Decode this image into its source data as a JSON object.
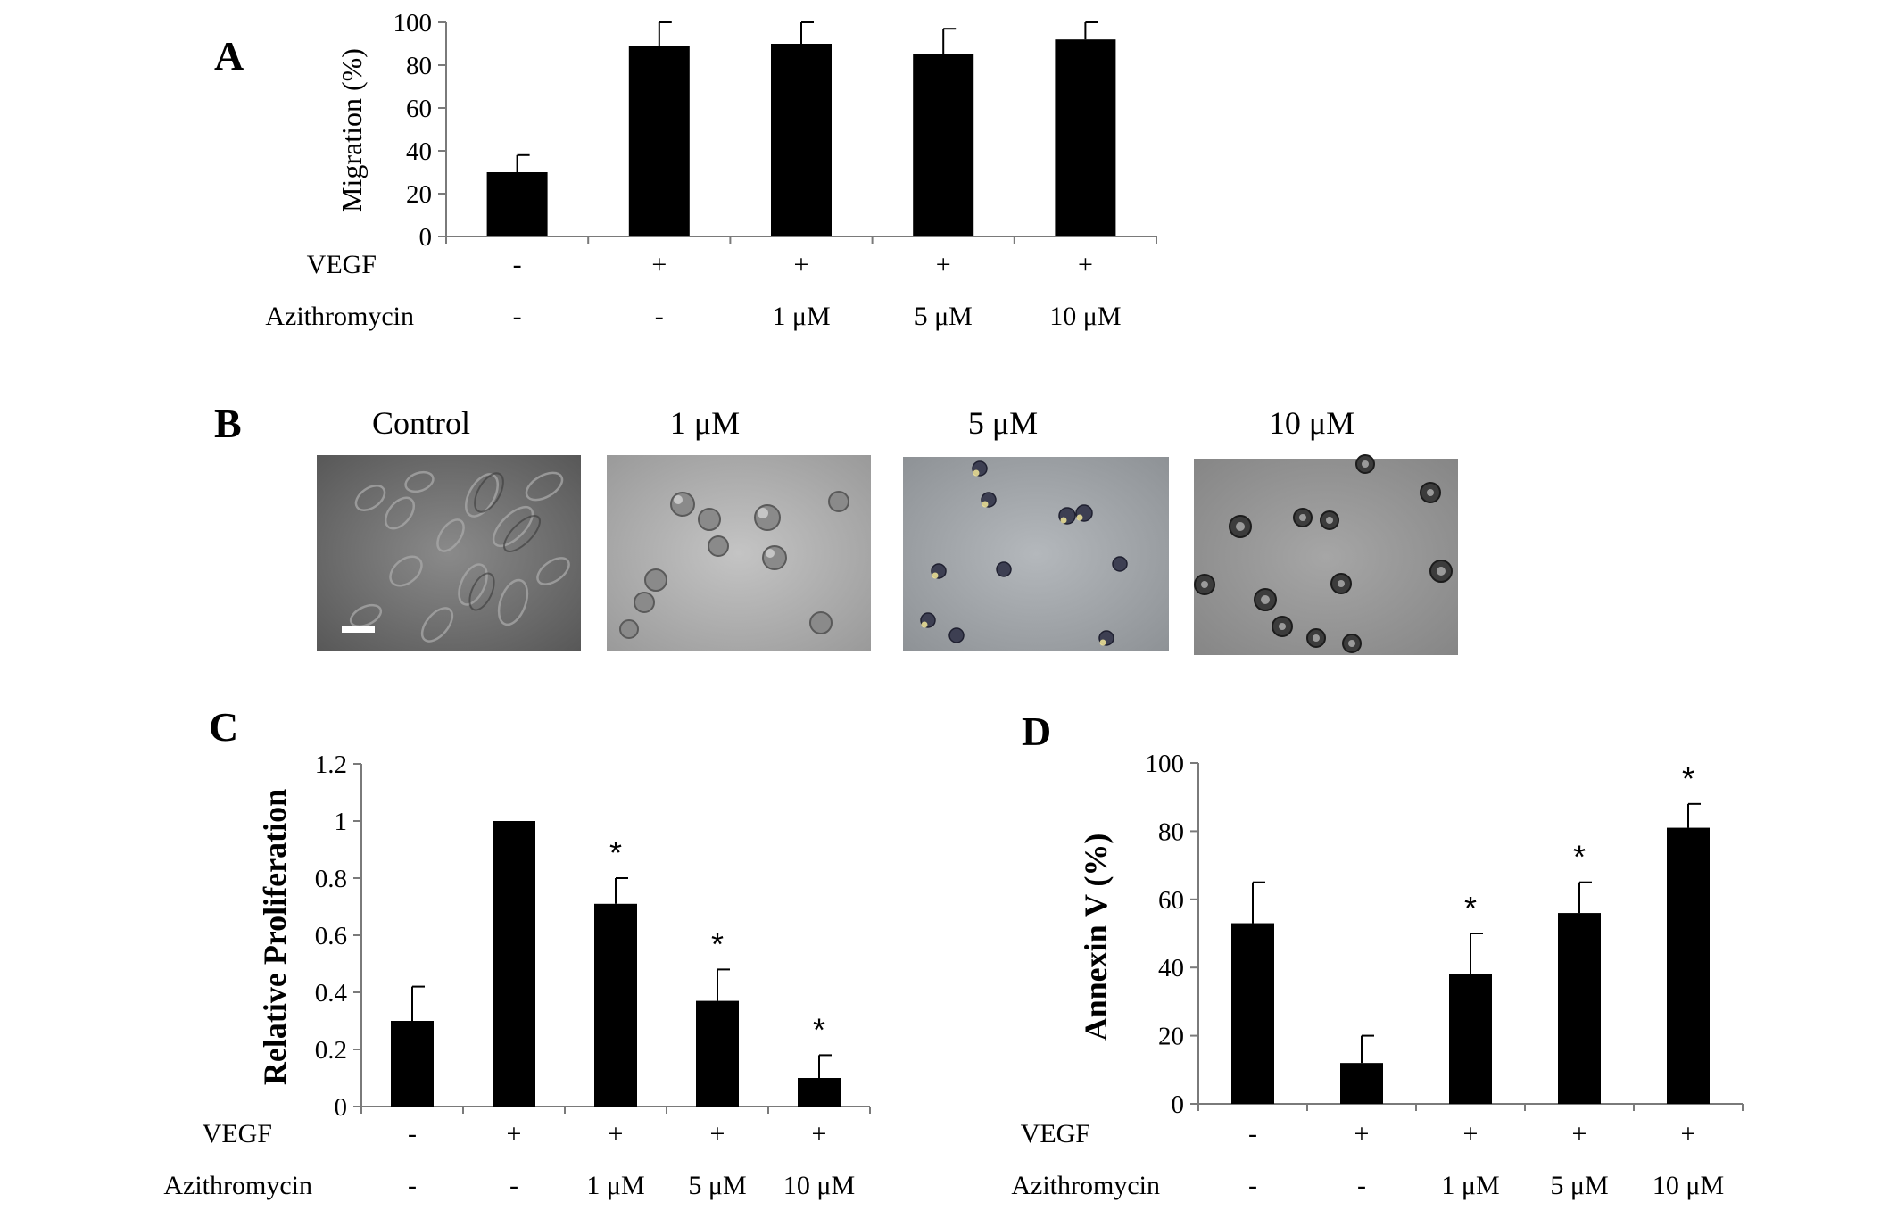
{
  "panel_labels": {
    "a": "A",
    "b": "B",
    "c": "C",
    "d": "D"
  },
  "panel_b": {
    "titles": [
      "Control",
      "1 μM",
      "5 μM",
      "10 μM"
    ],
    "images": [
      "control-micrograph",
      "1um-micrograph",
      "5um-micrograph",
      "10um-micrograph"
    ]
  },
  "chart_data": [
    {
      "panel": "A",
      "type": "bar",
      "categories": [
        "",
        "",
        "",
        "",
        ""
      ],
      "values": [
        30,
        89,
        90,
        85,
        92
      ],
      "errors": [
        8,
        11,
        10,
        12,
        8
      ],
      "ylabel": "Migration (%)",
      "ylim": [
        0,
        100
      ],
      "yticks": [
        "0",
        "20",
        "40",
        "60",
        "80",
        "100"
      ],
      "rows": [
        {
          "label": "VEGF",
          "values": [
            "-",
            "+",
            "+",
            "+",
            "+"
          ]
        },
        {
          "label": "Azithromycin",
          "values": [
            "-",
            "-",
            "1 μM",
            "5 μM",
            "10 μM"
          ]
        }
      ],
      "significance": [
        "",
        "",
        "",
        "",
        ""
      ],
      "bar_color": "#000000",
      "grid": false
    },
    {
      "panel": "C",
      "type": "bar",
      "categories": [
        "",
        "",
        "",
        "",
        ""
      ],
      "values": [
        0.3,
        1.0,
        0.71,
        0.37,
        0.1
      ],
      "errors": [
        0.12,
        0.0,
        0.09,
        0.11,
        0.08
      ],
      "ylabel": "Relative Proliferation",
      "ylim": [
        0,
        1.2
      ],
      "yticks": [
        "0",
        "0.2",
        "0.4",
        "0.6",
        "0.8",
        "1",
        "1.2"
      ],
      "rows": [
        {
          "label": "VEGF",
          "values": [
            "-",
            "+",
            "+",
            "+",
            "+"
          ]
        },
        {
          "label": "Azithromycin",
          "values": [
            "-",
            "-",
            "1 μM",
            "5 μM",
            "10 μM"
          ]
        }
      ],
      "significance": [
        "",
        "",
        "*",
        "*",
        "*"
      ],
      "bar_color": "#000000",
      "grid": false
    },
    {
      "panel": "D",
      "type": "bar",
      "categories": [
        "",
        "",
        "",
        "",
        ""
      ],
      "values": [
        53,
        12,
        38,
        56,
        81
      ],
      "errors": [
        12,
        8,
        12,
        9,
        7
      ],
      "ylabel": "Annexin V (%)",
      "ylim": [
        0,
        100
      ],
      "yticks": [
        "0",
        "20",
        "40",
        "60",
        "80",
        "100"
      ],
      "rows": [
        {
          "label": "VEGF",
          "values": [
            "-",
            "+",
            "+",
            "+",
            "+"
          ]
        },
        {
          "label": "Azithromycin",
          "values": [
            "-",
            "-",
            "1 μM",
            "5 μM",
            "10 μM"
          ]
        }
      ],
      "significance": [
        "",
        "",
        "*",
        "*",
        "*"
      ],
      "bar_color": "#000000",
      "grid": false
    }
  ]
}
